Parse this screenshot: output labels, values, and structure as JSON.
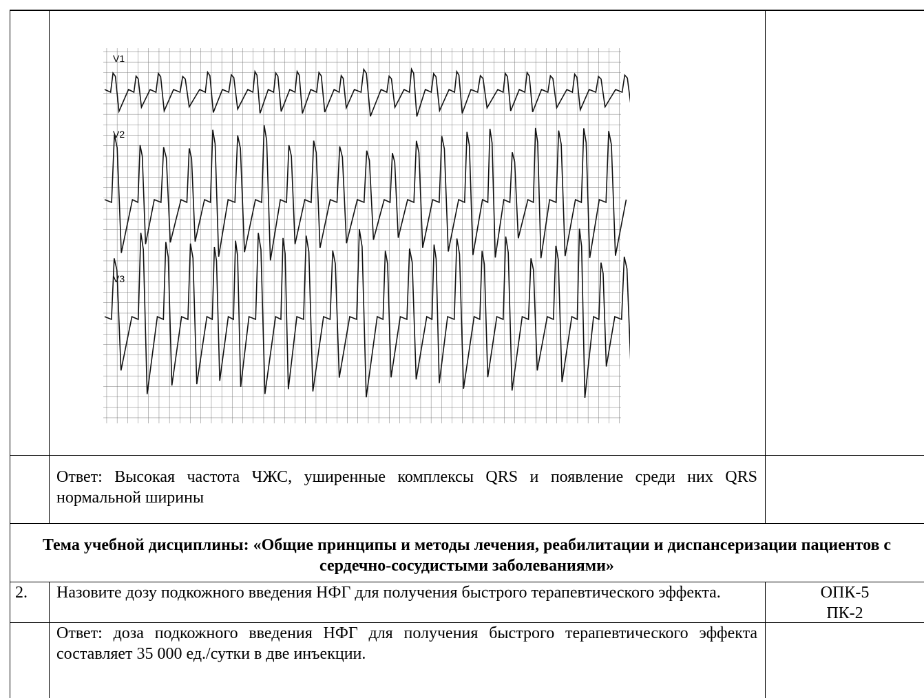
{
  "ecg_leads": [
    "V1",
    "V2",
    "V3"
  ],
  "question_1": {
    "answer": "Ответ: Высокая частота ЧЖС, уширенные комплексы QRS и появление среди них QRS  нормальной ширины"
  },
  "topic": "Тема учебной дисциплины: «Общие принципы и методы лечения, реабилитации и диспансеризации пациентов с сердечно-сосудистыми заболеваниями»",
  "question_2": {
    "number": "2.",
    "text": "Назовите дозу подкожного введения НФГ для получения быстрого терапевтического эффекта.",
    "competencies": [
      "ОПК-5",
      "ПК-2"
    ],
    "answer": "Ответ: доза подкожного введения НФГ для получения быстрого терапевтического эффекта составляет 35 000 ед./сутки в  две инъекции."
  }
}
